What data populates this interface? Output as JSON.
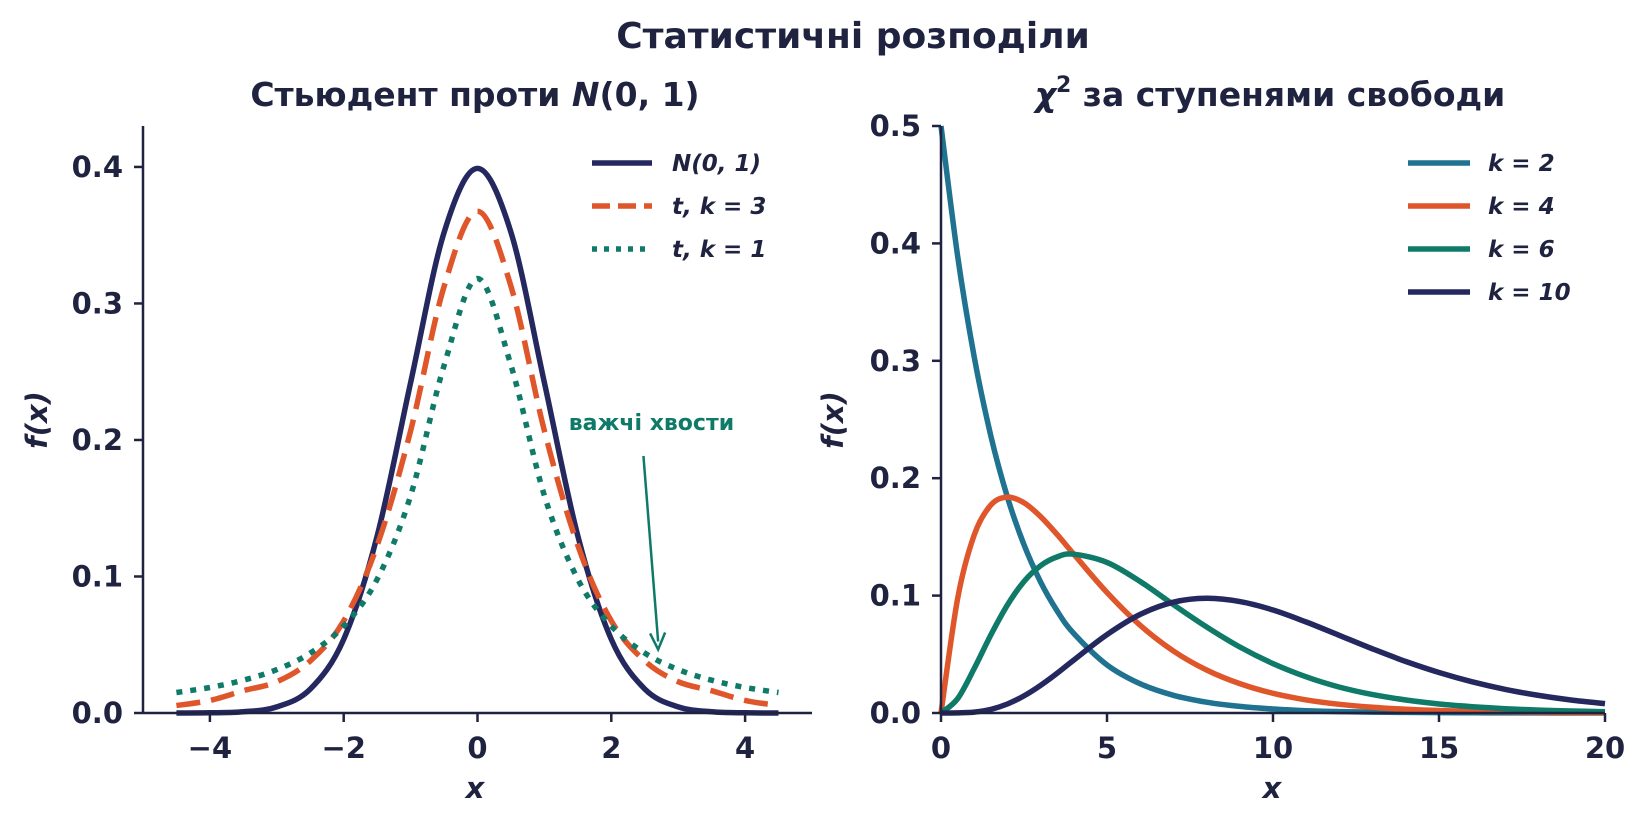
{
  "figure": {
    "suptitle": "Статистичні розподіли"
  },
  "colors": {
    "text": "#1f2340",
    "normal": "#24285f",
    "t3": "#e0562b",
    "t1": "#0f7a68",
    "chi2_k2": "#1f7290",
    "chi2_k4": "#e0562b",
    "chi2_k6": "#0f7a68",
    "chi2_k10": "#24285f",
    "annotation": "#0f7a68"
  },
  "chart_data": [
    {
      "type": "line",
      "title_parts": [
        "Стьюдент проти ",
        "N",
        "(0, 1)"
      ],
      "xlabel": "x",
      "ylabel": "f(x)",
      "xlim": [
        -5,
        5
      ],
      "ylim": [
        0,
        0.43
      ],
      "xticks": [
        -4,
        -2,
        0,
        2,
        4
      ],
      "xtick_labels": [
        "−4",
        "−2",
        "0",
        "2",
        "4"
      ],
      "yticks": [
        0.0,
        0.1,
        0.2,
        0.3,
        0.4
      ],
      "ytick_labels": [
        "0.0",
        "0.1",
        "0.2",
        "0.3",
        "0.4"
      ],
      "grid": false,
      "legend_position": "top-right",
      "x": [
        -4.5,
        -4.0,
        -3.5,
        -3.0,
        -2.5,
        -2.0,
        -1.5,
        -1.0,
        -0.5,
        0.0,
        0.5,
        1.0,
        1.5,
        2.0,
        2.5,
        3.0,
        3.5,
        4.0,
        4.5
      ],
      "series": [
        {
          "name": "N(0, 1)",
          "legend_label": "N(0, 1)",
          "style": "solid",
          "color_key": "normal",
          "values": [
            1.6e-05,
            0.000134,
            0.000873,
            0.004432,
            0.017528,
            0.053991,
            0.129518,
            0.241971,
            0.352065,
            0.398942,
            0.352065,
            0.241971,
            0.129518,
            0.053991,
            0.017528,
            0.004432,
            0.000873,
            0.000134,
            1.6e-05
          ]
        },
        {
          "name": "t, k = 3",
          "legend_label": "t,  k = 3",
          "style": "dashed",
          "color_key": "t3",
          "values": [
            0.0055,
            0.0092,
            0.0163,
            0.0229,
            0.0382,
            0.0675,
            0.1226,
            0.2067,
            0.3125,
            0.3676,
            0.3125,
            0.2067,
            0.1226,
            0.0675,
            0.0382,
            0.0229,
            0.0163,
            0.0092,
            0.0055
          ]
        },
        {
          "name": "t, k = 1",
          "legend_label": "t,  k = 1",
          "style": "dotted",
          "color_key": "t1",
          "values": [
            0.015,
            0.0187,
            0.024,
            0.0318,
            0.0439,
            0.0637,
            0.0979,
            0.1592,
            0.2546,
            0.3183,
            0.2546,
            0.1592,
            0.0979,
            0.0637,
            0.0439,
            0.0318,
            0.024,
            0.0187,
            0.015
          ]
        }
      ],
      "annotations": [
        {
          "text": "важчі хвости",
          "text_x": 2.6,
          "text_y": 0.2,
          "arrow_to_x": 2.7,
          "arrow_to_y": 0.048
        }
      ]
    },
    {
      "type": "line",
      "title_parts": [
        "χ",
        "2",
        " за ступенями свободи"
      ],
      "xlabel": "x",
      "ylabel": "f(x)",
      "xlim": [
        0,
        20
      ],
      "ylim": [
        0,
        0.5
      ],
      "xticks": [
        0,
        5,
        10,
        15,
        20
      ],
      "xtick_labels": [
        "0",
        "5",
        "10",
        "15",
        "20"
      ],
      "yticks": [
        0.0,
        0.1,
        0.2,
        0.3,
        0.4,
        0.5
      ],
      "ytick_labels": [
        "0.0",
        "0.1",
        "0.2",
        "0.3",
        "0.4",
        "0.5"
      ],
      "grid": false,
      "legend_position": "top-right",
      "x": [
        0,
        0.5,
        1,
        1.5,
        2,
        2.5,
        3,
        3.5,
        4,
        5,
        6,
        7,
        8,
        9,
        10,
        11,
        12,
        13,
        14,
        15,
        16,
        17,
        18,
        19,
        20
      ],
      "series": [
        {
          "name": "k = 2",
          "legend_label": "k = 2",
          "color_key": "chi2_k2",
          "values": [
            0.5,
            0.3894,
            0.3033,
            0.2362,
            0.1839,
            0.1433,
            0.1116,
            0.0869,
            0.0677,
            0.041,
            0.0249,
            0.0151,
            0.0092,
            0.0056,
            0.0034,
            0.002,
            0.0012,
            0.0008,
            0.0005,
            0.0003,
            0.0002,
            0.0001,
            0.0001,
            0.0,
            0.0
          ]
        },
        {
          "name": "k = 4",
          "legend_label": "k = 4",
          "color_key": "chi2_k4",
          "values": [
            0.0,
            0.0974,
            0.1516,
            0.1771,
            0.1839,
            0.1791,
            0.1673,
            0.152,
            0.1353,
            0.1026,
            0.0747,
            0.0528,
            0.0366,
            0.025,
            0.0168,
            0.0112,
            0.0074,
            0.0049,
            0.0032,
            0.0021,
            0.0013,
            0.0009,
            0.0006,
            0.0004,
            0.0002
          ]
        },
        {
          "name": "k = 6",
          "legend_label": "k = 6",
          "color_key": "chi2_k6",
          "values": [
            0.0,
            0.0122,
            0.0379,
            0.0664,
            0.092,
            0.112,
            0.1255,
            0.133,
            0.1353,
            0.1283,
            0.112,
            0.0923,
            0.0733,
            0.0562,
            0.0421,
            0.0308,
            0.0221,
            0.0157,
            0.0111,
            0.0077,
            0.0054,
            0.0037,
            0.0025,
            0.0017,
            0.0011
          ]
        },
        {
          "name": "k = 10",
          "legend_label": "k = 10",
          "color_key": "chi2_k10",
          "values": [
            0.0,
            0.0001,
            0.0008,
            0.0031,
            0.0077,
            0.0146,
            0.0235,
            0.0339,
            0.0451,
            0.0668,
            0.084,
            0.0944,
            0.0977,
            0.0949,
            0.0877,
            0.0775,
            0.0661,
            0.0546,
            0.0439,
            0.0345,
            0.0266,
            0.0201,
            0.015,
            0.011,
            0.008
          ]
        }
      ]
    }
  ]
}
